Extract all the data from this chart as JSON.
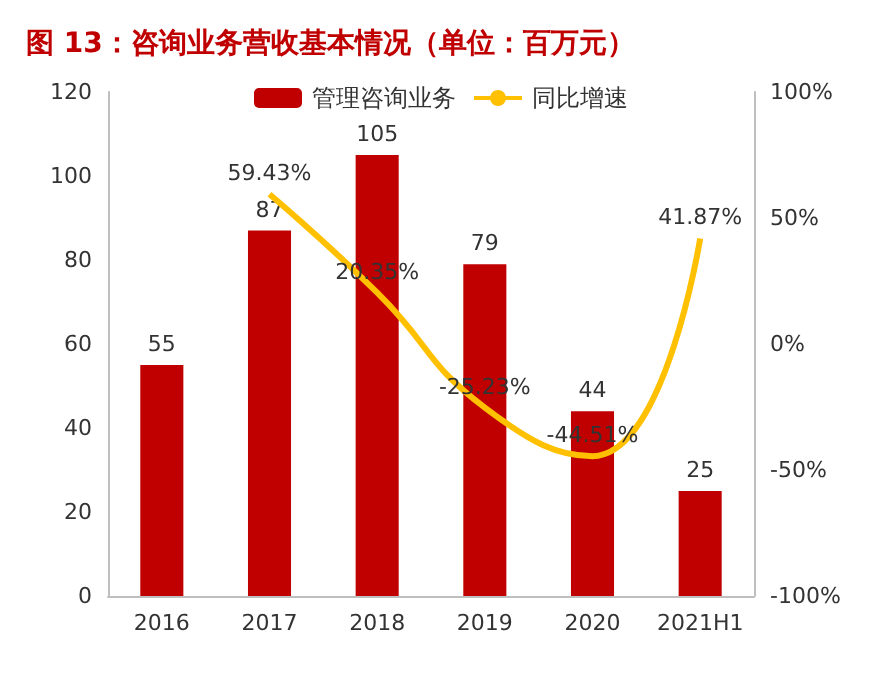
{
  "chart_data": {
    "type": "bar",
    "title": "图 13：咨询业务营收基本情况（单位：百万元）",
    "categories": [
      "2016",
      "2017",
      "2018",
      "2019",
      "2020",
      "2021H1"
    ],
    "series": [
      {
        "name": "管理咨询业务",
        "color": "#c00000",
        "values": [
          55,
          87,
          105,
          79,
          44,
          25
        ]
      },
      {
        "name": "同比增速",
        "type": "line",
        "axis": "y2",
        "color": "#ffc000",
        "values": [
          null,
          59.43,
          20.35,
          -25.23,
          -44.51,
          41.87
        ],
        "value_labels": [
          null,
          "59.43%",
          "20.35%",
          "-25.23%",
          "-44.51%",
          "41.87%"
        ]
      }
    ],
    "ylim": [
      0,
      120
    ],
    "yticks": [
      0,
      20,
      40,
      60,
      80,
      100,
      120
    ],
    "y2lim": [
      -100,
      100
    ],
    "y2ticks": [
      {
        "value": -100,
        "label": "-100%"
      },
      {
        "value": -50,
        "label": "-50%"
      },
      {
        "value": 0,
        "label": "0%"
      },
      {
        "value": 50,
        "label": "50%"
      },
      {
        "value": 100,
        "label": "100%"
      }
    ],
    "data_labels": true,
    "grid": false,
    "legend": "top",
    "marker": "none",
    "line_style": "solid"
  }
}
